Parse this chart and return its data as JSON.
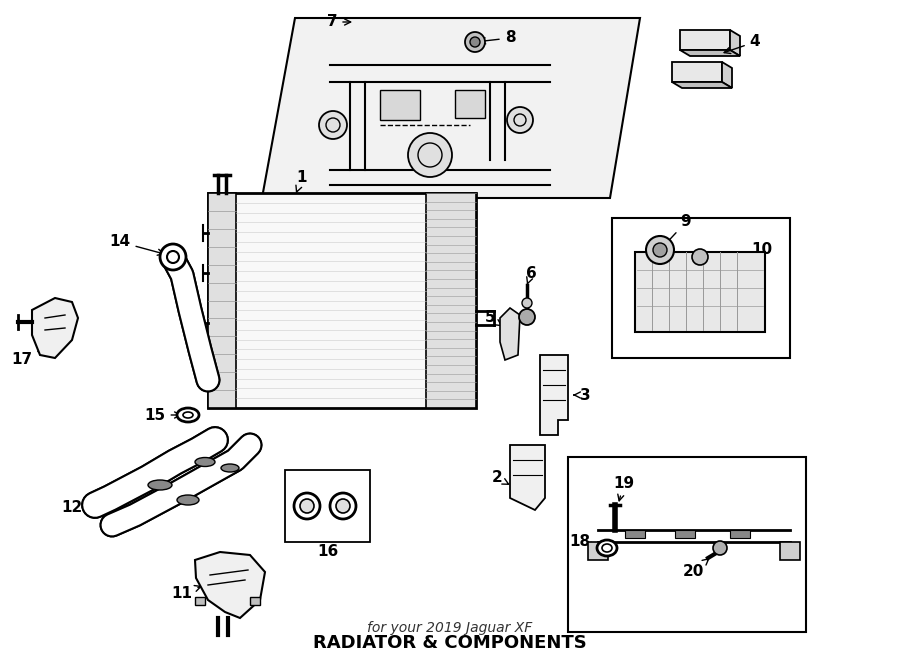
{
  "title": "RADIATOR & COMPONENTS",
  "subtitle": "for your 2019 Jaguar XF",
  "bg_color": "#ffffff",
  "line_color": "#000000",
  "fig_width": 9.0,
  "fig_height": 6.61,
  "dpi": 100
}
